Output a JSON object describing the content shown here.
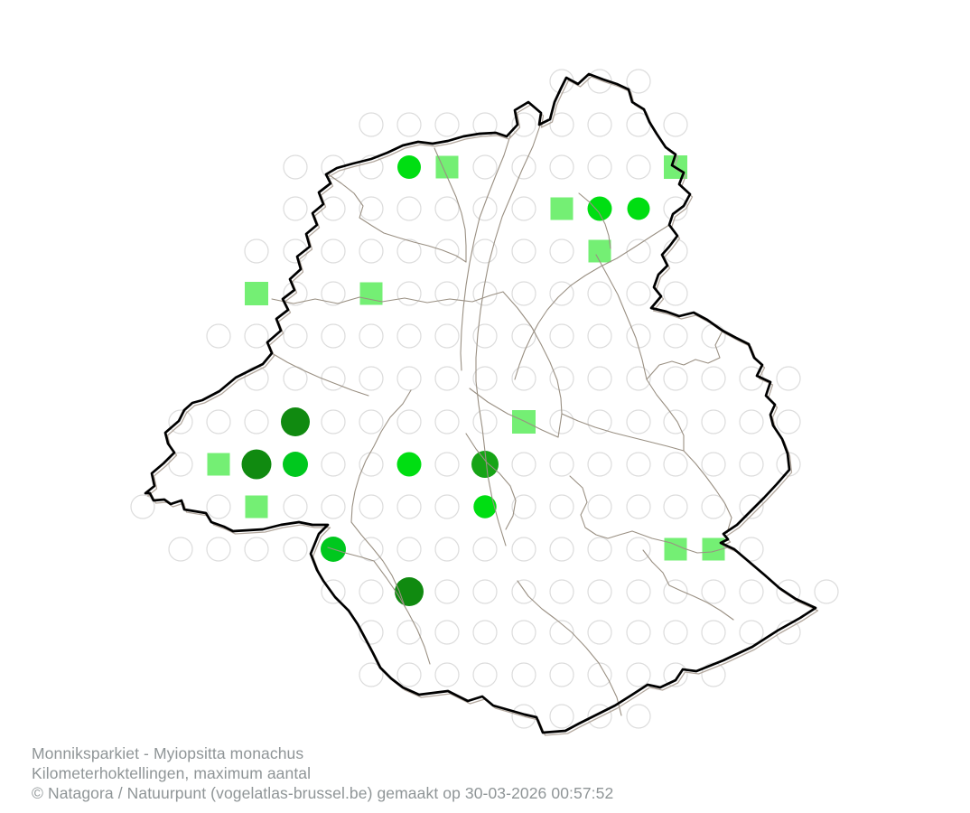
{
  "footer": {
    "line1": "Monniksparkiet - Myiopsitta monachus",
    "line2": "Kilometerhoktellingen, maximum aantal",
    "line3": "© Natagora / Natuurpunt (vogelatlas-brussel.be) gemaakt op 30-03-2026 00:57:52"
  },
  "colors": {
    "background": "#ffffff",
    "empty_cell_stroke": "#dcdcdc",
    "square_fill": "#74ef74",
    "circle_bright": "#00de12",
    "circle_deep": "#00c81e",
    "circle_mid": "#16a416",
    "circle_dark": "#108a10",
    "region_border": "#000000",
    "border_shadow": "#b3a89e",
    "municipal_line": "#9a9083",
    "footer_text": "#8f9597"
  },
  "map": {
    "cols": [
      158,
      200,
      242,
      284,
      327,
      369,
      411,
      453,
      495,
      537,
      580,
      622,
      664,
      707,
      748,
      790,
      832,
      873,
      915
    ],
    "rows": [
      90,
      138,
      185,
      231,
      278,
      325,
      372,
      419,
      467,
      514,
      561,
      608,
      655,
      700,
      747,
      793
    ],
    "empty_radius": 13,
    "empty_stroke_width": 1.2,
    "empty_cells": [
      [
        11,
        12,
        13
      ],
      [
        6,
        7,
        8,
        9,
        10,
        11,
        12,
        13,
        14
      ],
      [
        4,
        5,
        6,
        9,
        10,
        11,
        12,
        13
      ],
      [
        4,
        5,
        6,
        7,
        8,
        9,
        10,
        14
      ],
      [
        3,
        4,
        5,
        6,
        7,
        8,
        9,
        10,
        11,
        13,
        14
      ],
      [
        4,
        5,
        7,
        8,
        9,
        10,
        11,
        12,
        13,
        14
      ],
      [
        2,
        3,
        4,
        5,
        6,
        7,
        8,
        9,
        10,
        11,
        12,
        13,
        14,
        15
      ],
      [
        3,
        4,
        5,
        6,
        7,
        8,
        9,
        10,
        11,
        12,
        13,
        14,
        15,
        16,
        17
      ],
      [
        1,
        2,
        3,
        5,
        6,
        7,
        8,
        9,
        11,
        12,
        13,
        14,
        15,
        16,
        17
      ],
      [
        1,
        5,
        6,
        8,
        10,
        11,
        12,
        13,
        14,
        15,
        16,
        17
      ],
      [
        0,
        2,
        4,
        5,
        6,
        7,
        8,
        10,
        11,
        12,
        13,
        14,
        15,
        16
      ],
      [
        1,
        2,
        3,
        4,
        6,
        7,
        8,
        9,
        10,
        11,
        12,
        13,
        16
      ],
      [
        5,
        6,
        8,
        9,
        10,
        11,
        12,
        13,
        14,
        15,
        16,
        17,
        18
      ],
      [
        6,
        7,
        8,
        9,
        10,
        11,
        12,
        13,
        14,
        15,
        16,
        17
      ],
      [
        6,
        7,
        8,
        9,
        10,
        11,
        12,
        13,
        14,
        15
      ],
      [
        10,
        11,
        12,
        13
      ]
    ],
    "markers": [
      {
        "row": 2,
        "col": 7,
        "kind": "circle",
        "color": "bright",
        "r": 13
      },
      {
        "row": 2,
        "col": 8,
        "kind": "square",
        "s": 25
      },
      {
        "row": 2,
        "col": 14,
        "kind": "square",
        "s": 26
      },
      {
        "row": 3,
        "col": 11,
        "kind": "square",
        "s": 25
      },
      {
        "row": 3,
        "col": 12,
        "kind": "circle",
        "color": "bright",
        "r": 13.5
      },
      {
        "row": 3,
        "col": 13,
        "kind": "circle",
        "color": "bright",
        "r": 12.5
      },
      {
        "row": 4,
        "col": 12,
        "kind": "square",
        "s": 25
      },
      {
        "row": 5,
        "col": 3,
        "kind": "square",
        "s": 26
      },
      {
        "row": 5,
        "col": 6,
        "kind": "square",
        "s": 25
      },
      {
        "row": 8,
        "col": 4,
        "kind": "circle",
        "color": "dark",
        "r": 16
      },
      {
        "row": 8,
        "col": 10,
        "kind": "square",
        "s": 26
      },
      {
        "row": 9,
        "col": 2,
        "kind": "square",
        "s": 25
      },
      {
        "row": 9,
        "col": 3,
        "kind": "circle",
        "color": "dark",
        "r": 16.5
      },
      {
        "row": 9,
        "col": 4,
        "kind": "circle",
        "color": "deep",
        "r": 14
      },
      {
        "row": 9,
        "col": 7,
        "kind": "circle",
        "color": "bright",
        "r": 13.5
      },
      {
        "row": 9,
        "col": 9,
        "kind": "circle",
        "color": "mid",
        "r": 15
      },
      {
        "row": 10,
        "col": 3,
        "kind": "square",
        "s": 25
      },
      {
        "row": 10,
        "col": 9,
        "kind": "circle",
        "color": "bright",
        "r": 12.7
      },
      {
        "row": 11,
        "col": 5,
        "kind": "circle",
        "color": "deep",
        "r": 14
      },
      {
        "row": 11,
        "col": 14,
        "kind": "square",
        "s": 25
      },
      {
        "row": 11,
        "col": 15,
        "kind": "square",
        "s": 25
      },
      {
        "row": 12,
        "col": 7,
        "kind": "circle",
        "color": "dark",
        "r": 16
      }
    ]
  }
}
